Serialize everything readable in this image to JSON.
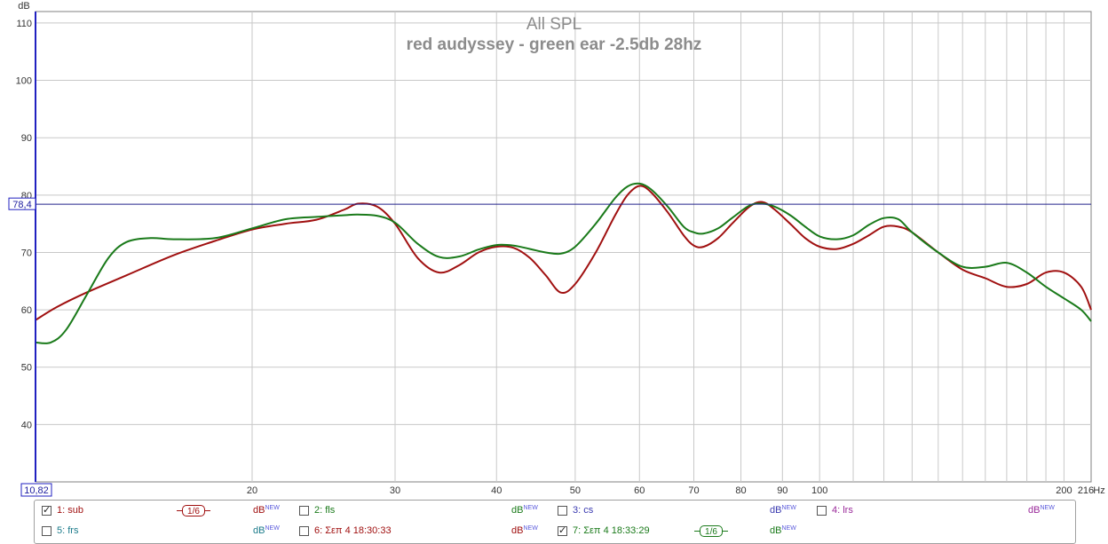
{
  "chart_data": {
    "type": "line",
    "title": "All SPL",
    "subtitle": "red audyssey - green ear -2.5db 28hz",
    "ylabel": "dB",
    "xunit": "Hz",
    "xscale": "log",
    "xlim": [
      10.82,
      216
    ],
    "ylim": [
      30,
      112
    ],
    "xticks": [
      20,
      30,
      40,
      50,
      60,
      70,
      80,
      90,
      100,
      200,
      216
    ],
    "xtick_labels": [
      "20",
      "30",
      "40",
      "50",
      "60",
      "70",
      "80",
      "90",
      "100",
      "200",
      "216"
    ],
    "yticks": [
      40,
      50,
      60,
      70,
      80,
      90,
      100,
      110
    ],
    "ytick_labels": [
      "40",
      "50",
      "60",
      "70",
      "80",
      "90",
      "100",
      "110"
    ],
    "x_cursor_label": "10,82",
    "y_cursor": 78.4,
    "y_cursor_label": "78,4",
    "grid": true,
    "series": [
      {
        "color": "#a01010",
        "x": [
          10.82,
          11.5,
          12.5,
          14,
          16,
          18,
          20,
          22,
          24,
          26,
          27,
          28.5,
          30,
          32,
          34,
          36,
          38,
          40,
          42,
          44,
          46,
          48,
          50,
          53,
          56,
          58,
          60,
          62,
          65,
          68,
          70,
          72,
          75,
          78,
          82,
          85,
          88,
          92,
          96,
          100,
          105,
          110,
          115,
          120,
          125,
          130,
          140,
          150,
          160,
          170,
          180,
          190,
          200,
          210,
          216
        ],
        "y": [
          58.2,
          60.5,
          63.0,
          66.0,
          69.5,
          72.0,
          74.0,
          75.0,
          75.7,
          77.5,
          78.5,
          78.0,
          75.0,
          69.0,
          66.5,
          67.8,
          70.0,
          71.0,
          70.8,
          69.0,
          66.0,
          63.0,
          64.5,
          70.0,
          76.5,
          80.0,
          81.6,
          80.5,
          77.0,
          73.0,
          71.2,
          71.0,
          72.5,
          75.0,
          78.0,
          78.8,
          77.5,
          75.0,
          72.5,
          71.0,
          70.6,
          71.5,
          73.0,
          74.5,
          74.5,
          73.5,
          70.0,
          67.0,
          65.5,
          64.0,
          64.5,
          66.5,
          66.5,
          64.0,
          60.0
        ]
      },
      {
        "color": "#1a7a1a",
        "x": [
          10.82,
          11.3,
          11.8,
          12.5,
          13.3,
          14,
          15,
          16,
          18,
          20,
          22,
          24,
          26,
          27,
          28.5,
          30,
          32,
          34,
          36,
          38,
          40,
          42,
          44,
          46,
          48,
          50,
          53,
          56,
          58,
          60,
          62,
          65,
          68,
          70,
          72,
          75,
          78,
          82,
          85,
          88,
          92,
          96,
          100,
          105,
          110,
          115,
          120,
          125,
          130,
          140,
          150,
          160,
          170,
          180,
          190,
          200,
          210,
          216
        ],
        "y": [
          54.3,
          54.3,
          56.5,
          62.5,
          69.0,
          71.8,
          72.5,
          72.3,
          72.5,
          74.2,
          75.8,
          76.2,
          76.5,
          76.6,
          76.4,
          75.2,
          71.5,
          69.2,
          69.3,
          70.5,
          71.3,
          71.2,
          70.6,
          70.0,
          69.8,
          71.0,
          75.0,
          79.5,
          81.5,
          82.0,
          81.0,
          78.0,
          74.5,
          73.5,
          73.3,
          74.2,
          76.0,
          78.2,
          78.5,
          78.0,
          76.5,
          74.5,
          72.8,
          72.3,
          73.0,
          74.8,
          76.0,
          75.8,
          73.5,
          70.0,
          67.5,
          67.5,
          68.2,
          66.5,
          64.0,
          62.0,
          60.0,
          58.0
        ]
      }
    ],
    "legend": [
      {
        "label": "1: sub",
        "checked": true,
        "color": "#a01010",
        "smoothing": "1/6",
        "unit": "dB",
        "badge": "NEW"
      },
      {
        "label": "2: fls",
        "checked": false,
        "color": "#1a7a1a",
        "unit": "dB",
        "badge": "NEW"
      },
      {
        "label": "3: cs",
        "checked": false,
        "color": "#3a3ab0",
        "unit": "dB",
        "badge": "NEW"
      },
      {
        "label": "4: lrs",
        "checked": false,
        "color": "#9a2a9a",
        "unit": "dB",
        "badge": "NEW"
      },
      {
        "label": "5: frs",
        "checked": false,
        "color": "#1a7a8a",
        "unit": "dB",
        "badge": "NEW"
      },
      {
        "label": "6: Σεπ 4 18:30:33",
        "checked": false,
        "color": "#a01010",
        "unit": "dB",
        "badge": "NEW"
      },
      {
        "label": "7: Σεπ 4 18:33:29",
        "checked": true,
        "color": "#1a7a1a",
        "smoothing": "1/6",
        "unit": "dB",
        "badge": "NEW"
      }
    ]
  }
}
